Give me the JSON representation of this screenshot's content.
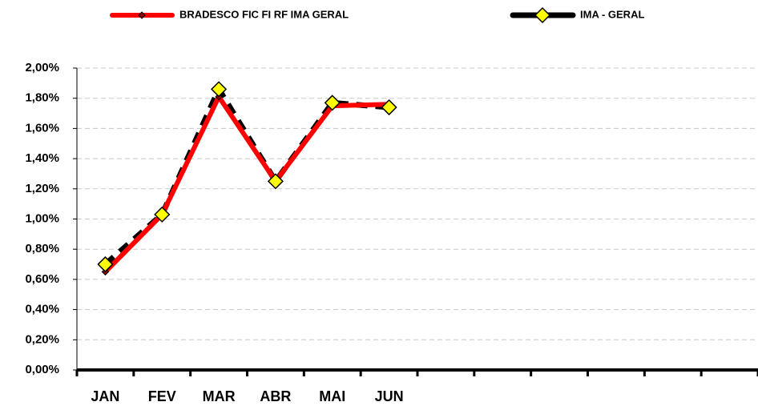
{
  "chart_data": {
    "type": "line",
    "categories": [
      "JAN",
      "FEV",
      "MAR",
      "ABR",
      "MAI",
      "JUN",
      null,
      null,
      null,
      null,
      null,
      null
    ],
    "series": [
      {
        "name": "BRADESCO FIC FI RF IMA GERAL",
        "color": "#ff0000",
        "values": [
          0.65,
          1.03,
          1.81,
          1.25,
          1.75,
          1.76,
          null,
          null,
          null,
          null,
          null,
          null
        ]
      },
      {
        "name": "IMA - GERAL",
        "color": "#000000",
        "values": [
          0.7,
          1.03,
          1.86,
          1.25,
          1.77,
          1.74,
          null,
          null,
          null,
          null,
          null,
          null
        ]
      }
    ],
    "ylim": [
      0,
      2
    ],
    "yticks": [
      {
        "value": 0,
        "label": "0,00%"
      },
      {
        "value": 0.2,
        "label": "0,20%"
      },
      {
        "value": 0.4,
        "label": "0,40%"
      },
      {
        "value": 0.6,
        "label": "0,60%"
      },
      {
        "value": 0.8,
        "label": "0,80%"
      },
      {
        "value": 1.0,
        "label": "1,00%"
      },
      {
        "value": 1.2,
        "label": "1,20%"
      },
      {
        "value": 1.4,
        "label": "1,40%"
      },
      {
        "value": 1.6,
        "label": "1,60%"
      },
      {
        "value": 1.8,
        "label": "1,80%"
      },
      {
        "value": 2.0,
        "label": "2,00%"
      }
    ],
    "grid": true,
    "legend": "top"
  }
}
